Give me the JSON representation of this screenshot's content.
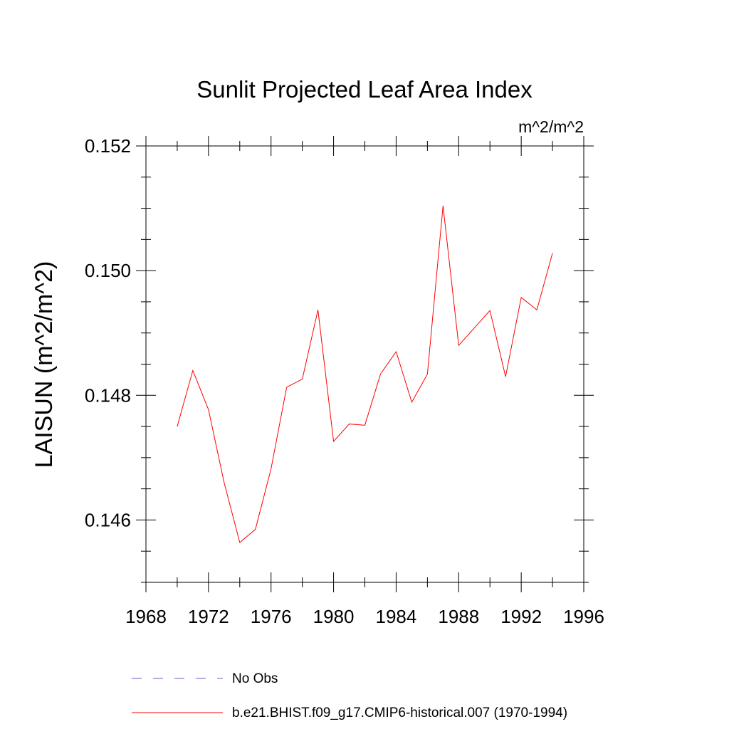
{
  "chart_data": {
    "type": "line",
    "title": "Sunlit Projected Leaf Area Index",
    "units": "m^2/m^2",
    "ylabel": "LAISUN  (m^2/m^2)",
    "xlabel": "",
    "xlim": [
      1968,
      1996
    ],
    "ylim": [
      0.145,
      0.152
    ],
    "x_ticks": [
      1968,
      1972,
      1976,
      1980,
      1984,
      1988,
      1992,
      1996
    ],
    "x_tick_labels": [
      "1968",
      "1972",
      "1976",
      "1980",
      "1984",
      "1988",
      "1992",
      "1996"
    ],
    "y_ticks": [
      0.146,
      0.148,
      0.15,
      0.152
    ],
    "y_tick_labels": [
      "0.146",
      "0.148",
      "0.150",
      "0.152"
    ],
    "grid": false,
    "legend_position": "bottom",
    "series": [
      {
        "name": "No Obs",
        "style": "dashed",
        "color": "#6a5acd",
        "x": [],
        "values": []
      },
      {
        "name": "b.e21.BHIST.f09_g17.CMIP6-historical.007 (1970-1994)",
        "style": "solid",
        "color": "#ff0000",
        "x": [
          1970,
          1971,
          1972,
          1973,
          1974,
          1975,
          1976,
          1977,
          1978,
          1979,
          1980,
          1981,
          1982,
          1983,
          1984,
          1985,
          1986,
          1987,
          1988,
          1989,
          1990,
          1991,
          1992,
          1993,
          1994
        ],
        "values": [
          0.1475,
          0.1484,
          0.14777,
          0.1466,
          0.14564,
          0.14585,
          0.14682,
          0.14813,
          0.14826,
          0.14937,
          0.14726,
          0.14754,
          0.14752,
          0.14834,
          0.1487,
          0.14789,
          0.14834,
          0.15104,
          0.1488,
          0.14908,
          0.14936,
          0.1483,
          0.14957,
          0.14937,
          0.15028
        ]
      }
    ]
  }
}
